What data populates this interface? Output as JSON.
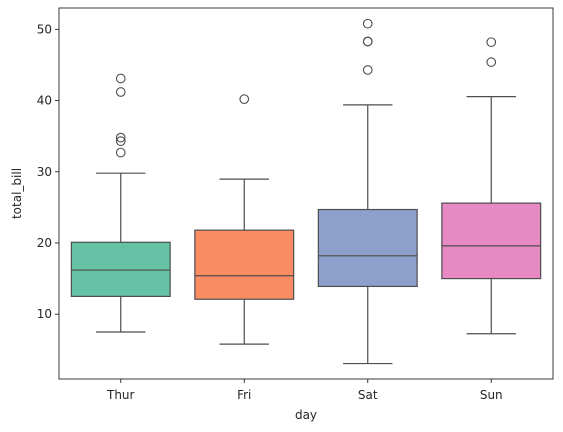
{
  "chart_data": {
    "type": "box",
    "title": "",
    "xlabel": "day",
    "ylabel": "total_bill",
    "ylim": [
      0.9,
      53.0
    ],
    "yticks": [
      10,
      20,
      30,
      40,
      50
    ],
    "grid": false,
    "categories": [
      "Thur",
      "Fri",
      "Sat",
      "Sun"
    ],
    "boxes": [
      {
        "category": "Thur",
        "color": "#66c2a5",
        "whisker_low": 7.5,
        "q1": 12.5,
        "median": 16.2,
        "q3": 20.1,
        "whisker_high": 29.8,
        "outliers": [
          32.7,
          34.3,
          34.8,
          41.2,
          43.1
        ]
      },
      {
        "category": "Fri",
        "color": "#fc8d62",
        "whisker_low": 5.8,
        "q1": 12.1,
        "median": 15.4,
        "q3": 21.8,
        "whisker_high": 28.97,
        "outliers": [
          40.2
        ]
      },
      {
        "category": "Sat",
        "color": "#8da0cb",
        "whisker_low": 3.07,
        "q1": 13.9,
        "median": 18.2,
        "q3": 24.7,
        "whisker_high": 39.4,
        "outliers": [
          44.3,
          48.3,
          48.3,
          50.8
        ]
      },
      {
        "category": "Sun",
        "color": "#e78ac3",
        "whisker_low": 7.25,
        "q1": 15.0,
        "median": 19.6,
        "q3": 25.6,
        "whisker_high": 40.55,
        "outliers": [
          45.4,
          48.2
        ]
      }
    ]
  }
}
